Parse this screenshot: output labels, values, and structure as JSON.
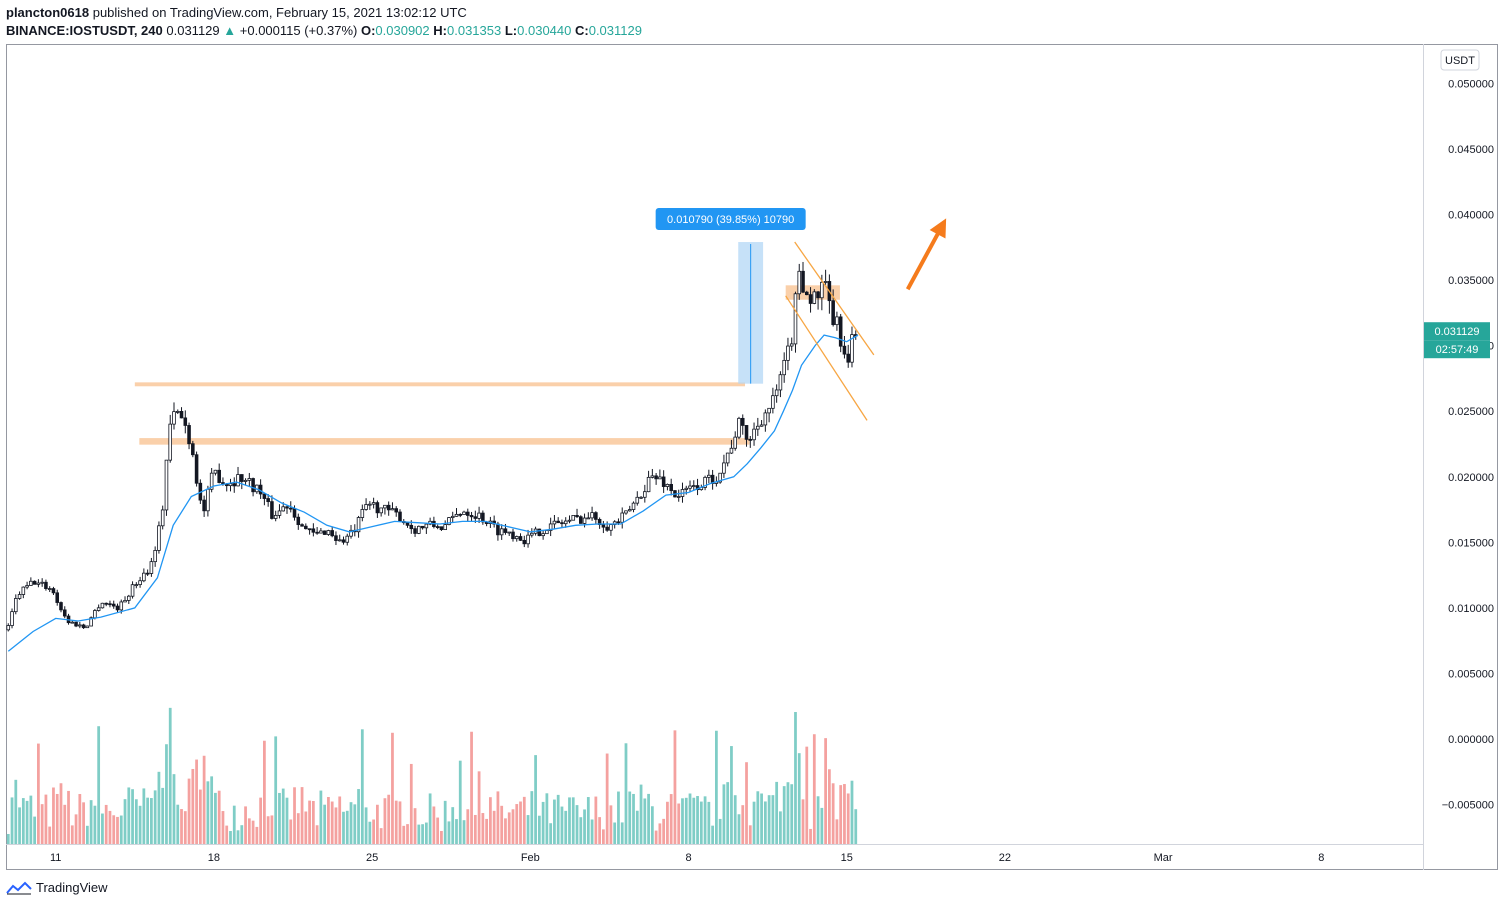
{
  "header": {
    "publisher": "plancton0618",
    "published_text": "published on TradingView.com, February 15, 2021 13:02:12 UTC",
    "symbol": "BINANCE:IOSTUSDT, 240",
    "last": "0.031129",
    "change": "+0.000115 (+0.37%)",
    "open_label": "O:",
    "open": "0.030902",
    "high_label": "H:",
    "high": "0.031353",
    "low_label": "L:",
    "low": "0.030440",
    "close_label": "C:",
    "close": "0.031129",
    "up_arrow": "▲"
  },
  "footer": {
    "brand": "TradingView"
  },
  "colors": {
    "up": "#26a69a",
    "down": "#ef5350",
    "wick": "#131722",
    "ma": "#2196f3",
    "zone": "#f9c89b",
    "channel": "#f7a643",
    "arrow": "#f57b1c",
    "measure_fill": "#b3d7f5",
    "measure_label": "#2196f3",
    "vol_up": "#7fcdc6",
    "vol_down": "#f4a19f"
  },
  "chart_data": {
    "type": "candlestick",
    "currency_label": "USDT",
    "ylim": [
      -0.008,
      0.053
    ],
    "y_ticks": [
      "0.050000",
      "0.045000",
      "0.040000",
      "0.035000",
      "0.030000",
      "0.025000",
      "0.020000",
      "0.015000",
      "0.010000",
      "0.005000",
      "0.000000",
      "−0.005000"
    ],
    "y_tick_values": [
      0.05,
      0.045,
      0.04,
      0.035,
      0.03,
      0.025,
      0.02,
      0.015,
      0.01,
      0.005,
      0.0,
      -0.005
    ],
    "x_ticks": [
      "11",
      "18",
      "25",
      "Feb",
      "8",
      "15",
      "22",
      "Mar",
      "8"
    ],
    "x_tick_days": [
      11,
      18,
      25,
      32,
      39,
      46,
      53,
      60,
      67
    ],
    "x_range_days": [
      8.8,
      71.5
    ],
    "candle_interval_hours": 4,
    "price_tag": "0.031129",
    "countdown_tag": "02:57:49",
    "close_path": [
      [
        8.9,
        0.0085
      ],
      [
        9.3,
        0.011
      ],
      [
        10.0,
        0.012
      ],
      [
        10.8,
        0.0115
      ],
      [
        11.5,
        0.009
      ],
      [
        12.3,
        0.0085
      ],
      [
        13.0,
        0.0105
      ],
      [
        13.8,
        0.01
      ],
      [
        14.5,
        0.0118
      ],
      [
        15.2,
        0.0132
      ],
      [
        15.7,
        0.017
      ],
      [
        16.0,
        0.0235
      ],
      [
        16.3,
        0.025
      ],
      [
        16.6,
        0.0245
      ],
      [
        17.0,
        0.0225
      ],
      [
        17.5,
        0.017
      ],
      [
        18.0,
        0.0205
      ],
      [
        18.5,
        0.0195
      ],
      [
        19.2,
        0.02
      ],
      [
        20.0,
        0.019
      ],
      [
        20.6,
        0.017
      ],
      [
        21.3,
        0.018
      ],
      [
        22.0,
        0.016
      ],
      [
        22.5,
        0.0155
      ],
      [
        23.0,
        0.016
      ],
      [
        23.6,
        0.015
      ],
      [
        24.2,
        0.0158
      ],
      [
        24.8,
        0.018
      ],
      [
        25.5,
        0.0175
      ],
      [
        26.2,
        0.017
      ],
      [
        26.8,
        0.016
      ],
      [
        27.5,
        0.0163
      ],
      [
        28.2,
        0.0162
      ],
      [
        29.0,
        0.0175
      ],
      [
        29.8,
        0.017
      ],
      [
        30.5,
        0.016
      ],
      [
        31.2,
        0.0157
      ],
      [
        31.8,
        0.0152
      ],
      [
        32.5,
        0.016
      ],
      [
        33.3,
        0.0165
      ],
      [
        34.0,
        0.0168
      ],
      [
        34.8,
        0.017
      ],
      [
        35.5,
        0.0162
      ],
      [
        36.2,
        0.017
      ],
      [
        36.8,
        0.0185
      ],
      [
        37.3,
        0.02
      ],
      [
        37.8,
        0.0198
      ],
      [
        38.5,
        0.0185
      ],
      [
        39.0,
        0.019
      ],
      [
        39.6,
        0.0195
      ],
      [
        40.2,
        0.02
      ],
      [
        40.7,
        0.0215
      ],
      [
        41.2,
        0.024
      ],
      [
        41.7,
        0.0228
      ],
      [
        42.2,
        0.0245
      ],
      [
        42.7,
        0.0255
      ],
      [
        43.2,
        0.028
      ],
      [
        43.6,
        0.031
      ],
      [
        43.9,
        0.036
      ],
      [
        44.2,
        0.034
      ],
      [
        44.6,
        0.0335
      ],
      [
        45.0,
        0.0345
      ],
      [
        45.4,
        0.032
      ],
      [
        45.7,
        0.031
      ],
      [
        46.0,
        0.028
      ],
      [
        46.2,
        0.03
      ],
      [
        46.5,
        0.0311
      ]
    ],
    "ma_path": [
      [
        8.9,
        0.0067
      ],
      [
        10.0,
        0.0082
      ],
      [
        11.0,
        0.0092
      ],
      [
        12.0,
        0.009
      ],
      [
        13.0,
        0.0093
      ],
      [
        14.5,
        0.01
      ],
      [
        15.5,
        0.0123
      ],
      [
        16.2,
        0.0163
      ],
      [
        17.0,
        0.0185
      ],
      [
        18.0,
        0.0193
      ],
      [
        19.0,
        0.0196
      ],
      [
        20.0,
        0.019
      ],
      [
        21.0,
        0.018
      ],
      [
        22.0,
        0.0173
      ],
      [
        23.0,
        0.0163
      ],
      [
        24.0,
        0.0158
      ],
      [
        25.0,
        0.0162
      ],
      [
        26.0,
        0.0166
      ],
      [
        27.0,
        0.0165
      ],
      [
        28.0,
        0.0164
      ],
      [
        29.0,
        0.0166
      ],
      [
        30.0,
        0.0166
      ],
      [
        31.0,
        0.0162
      ],
      [
        32.0,
        0.0158
      ],
      [
        33.0,
        0.016
      ],
      [
        34.0,
        0.0163
      ],
      [
        35.0,
        0.0164
      ],
      [
        36.0,
        0.0164
      ],
      [
        37.0,
        0.0174
      ],
      [
        38.0,
        0.0186
      ],
      [
        39.0,
        0.0188
      ],
      [
        40.0,
        0.0195
      ],
      [
        41.0,
        0.02
      ],
      [
        41.6,
        0.021
      ],
      [
        42.2,
        0.0222
      ],
      [
        42.8,
        0.0235
      ],
      [
        43.2,
        0.025
      ],
      [
        43.6,
        0.0266
      ],
      [
        44.0,
        0.0285
      ],
      [
        44.6,
        0.03
      ],
      [
        45.0,
        0.0308
      ],
      [
        45.5,
        0.0306
      ],
      [
        46.0,
        0.0303
      ],
      [
        46.5,
        0.0308
      ]
    ],
    "zones": [
      {
        "x1": 14.5,
        "x2": 41.5,
        "y1": 0.0269,
        "y2": 0.0272
      },
      {
        "x1": 14.7,
        "x2": 41.7,
        "y1": 0.02245,
        "y2": 0.02295
      },
      {
        "x1": 43.3,
        "x2": 45.7,
        "y1": 0.0335,
        "y2": 0.0346
      }
    ],
    "channel_lines": [
      {
        "x1": 43.7,
        "y1": 0.0379,
        "x2": 47.2,
        "y2": 0.0293
      },
      {
        "x1": 43.3,
        "y1": 0.0338,
        "x2": 46.9,
        "y2": 0.0243
      }
    ],
    "measure": {
      "x1": 41.2,
      "x2": 42.3,
      "y1": 0.0271,
      "y2": 0.0379,
      "label": "0.010790 (39.85%) 10790"
    },
    "arrow": {
      "x1": 48.7,
      "y1": 0.0343,
      "x2": 50.4,
      "y2": 0.0397
    }
  }
}
